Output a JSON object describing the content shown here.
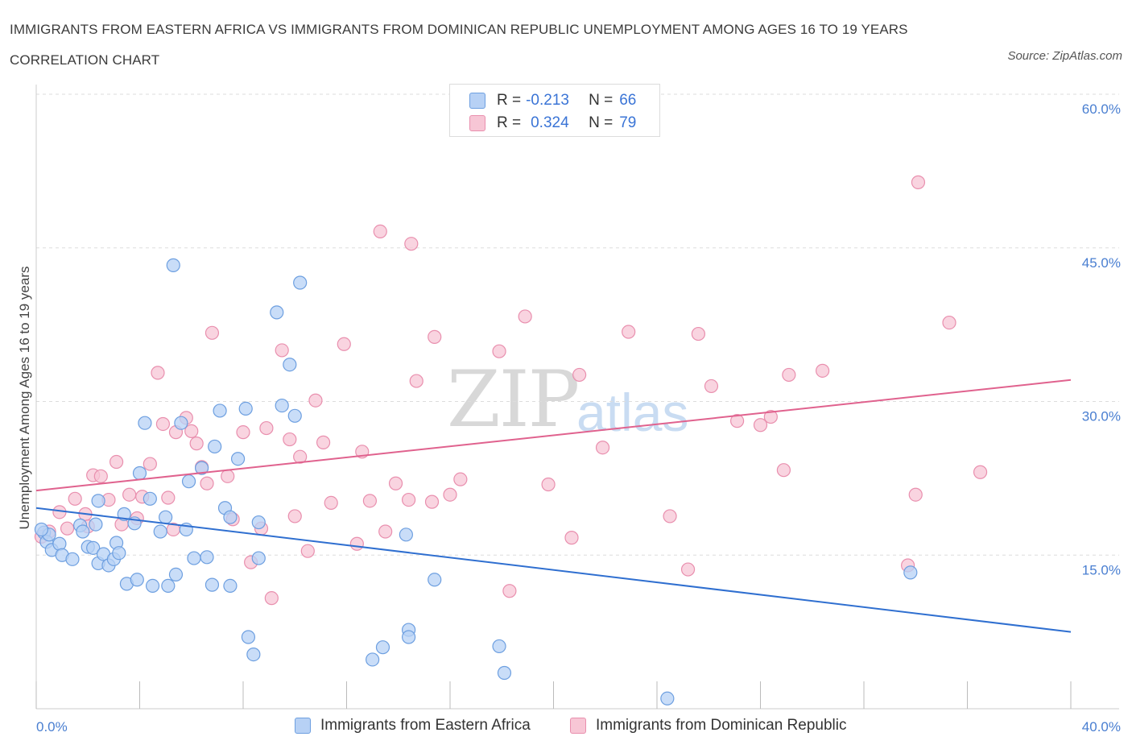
{
  "header": {
    "title": "IMMIGRANTS FROM EASTERN AFRICA VS IMMIGRANTS FROM DOMINICAN REPUBLIC UNEMPLOYMENT AMONG AGES 16 TO 19 YEARS CORRELATION CHART",
    "source": "Source: ZipAtlas.com"
  },
  "watermark": {
    "zip": "ZIP",
    "atlas": "atlas"
  },
  "legend": {
    "r_label": "R =",
    "n_label": "N =",
    "rows": [
      {
        "r": "-0.213",
        "n": "66"
      },
      {
        "r": "0.324",
        "n": "79"
      }
    ]
  },
  "colors": {
    "blue_fill": "#b7d1f5",
    "blue_stroke": "#6d9fe0",
    "blue_line": "#2f6fd0",
    "pink_fill": "#f7c6d5",
    "pink_stroke": "#e98fae",
    "pink_line": "#e0628e",
    "tick_text": "#4a7fd1",
    "grid": "#dddddd"
  },
  "chart_data": {
    "type": "scatter",
    "title": "IMMIGRANTS FROM EASTERN AFRICA VS IMMIGRANTS FROM DOMINICAN REPUBLIC UNEMPLOYMENT AMONG AGES 16 TO 19 YEARS CORRELATION CHART",
    "xlabel": "",
    "ylabel": "Unemployment Among Ages 16 to 19 years",
    "xlim": [
      0,
      40
    ],
    "ylim": [
      0,
      60
    ],
    "x_tick_labels": [
      "0.0%",
      "40.0%"
    ],
    "y_ticks": [
      15,
      30,
      45,
      60
    ],
    "y_tick_labels": [
      "15.0%",
      "30.0%",
      "45.0%",
      "60.0%"
    ],
    "grid": true,
    "legend_position": "top-center",
    "series": [
      {
        "name": "Immigrants from Eastern Africa",
        "color": "#6d9fe0",
        "trend": {
          "x": [
            0,
            40
          ],
          "y": [
            19.6,
            7.5
          ]
        },
        "points": [
          [
            0.3,
            17.2
          ],
          [
            0.4,
            16.3
          ],
          [
            0.5,
            17.0
          ],
          [
            0.6,
            15.5
          ],
          [
            0.9,
            16.1
          ],
          [
            1.0,
            15.0
          ],
          [
            1.4,
            14.6
          ],
          [
            1.7,
            17.9
          ],
          [
            1.8,
            17.3
          ],
          [
            2.0,
            15.8
          ],
          [
            2.2,
            15.7
          ],
          [
            2.3,
            18.0
          ],
          [
            2.4,
            20.3
          ],
          [
            2.4,
            14.2
          ],
          [
            2.6,
            15.1
          ],
          [
            2.8,
            14.0
          ],
          [
            3.0,
            14.6
          ],
          [
            3.1,
            16.2
          ],
          [
            3.2,
            15.2
          ],
          [
            3.4,
            19.0
          ],
          [
            3.5,
            12.2
          ],
          [
            3.8,
            18.1
          ],
          [
            3.9,
            12.6
          ],
          [
            4.0,
            23.0
          ],
          [
            4.2,
            27.9
          ],
          [
            4.5,
            12.0
          ],
          [
            4.4,
            20.5
          ],
          [
            4.8,
            17.3
          ],
          [
            5.0,
            18.7
          ],
          [
            5.1,
            12.0
          ],
          [
            5.3,
            43.3
          ],
          [
            5.4,
            13.1
          ],
          [
            5.6,
            27.9
          ],
          [
            5.8,
            17.5
          ],
          [
            5.9,
            22.2
          ],
          [
            6.1,
            14.7
          ],
          [
            6.4,
            23.5
          ],
          [
            6.6,
            14.8
          ],
          [
            6.8,
            12.1
          ],
          [
            6.9,
            25.6
          ],
          [
            7.1,
            29.1
          ],
          [
            7.3,
            19.6
          ],
          [
            7.5,
            12.0
          ],
          [
            7.5,
            18.7
          ],
          [
            7.8,
            24.4
          ],
          [
            8.1,
            29.3
          ],
          [
            8.2,
            7.0
          ],
          [
            8.4,
            5.3
          ],
          [
            8.6,
            18.2
          ],
          [
            8.6,
            14.7
          ],
          [
            9.3,
            38.7
          ],
          [
            9.5,
            29.6
          ],
          [
            9.8,
            33.6
          ],
          [
            10.0,
            28.6
          ],
          [
            10.2,
            41.6
          ],
          [
            13.0,
            4.8
          ],
          [
            13.4,
            6.0
          ],
          [
            14.3,
            17.0
          ],
          [
            14.4,
            7.7
          ],
          [
            14.4,
            7.0
          ],
          [
            15.4,
            12.6
          ],
          [
            17.9,
            6.1
          ],
          [
            18.1,
            3.5
          ],
          [
            24.4,
            1.0
          ],
          [
            33.8,
            13.3
          ],
          [
            0.2,
            17.5
          ]
        ]
      },
      {
        "name": "Immigrants from Dominican Republic",
        "color": "#e98fae",
        "trend": {
          "x": [
            0,
            40
          ],
          "y": [
            21.3,
            32.1
          ]
        },
        "points": [
          [
            0.2,
            16.8
          ],
          [
            0.5,
            17.3
          ],
          [
            0.9,
            19.2
          ],
          [
            1.2,
            17.6
          ],
          [
            1.5,
            20.5
          ],
          [
            1.9,
            19.0
          ],
          [
            2.0,
            17.8
          ],
          [
            2.2,
            22.8
          ],
          [
            2.5,
            22.7
          ],
          [
            2.8,
            20.4
          ],
          [
            3.1,
            24.1
          ],
          [
            3.3,
            18.0
          ],
          [
            3.6,
            20.9
          ],
          [
            3.9,
            18.6
          ],
          [
            4.1,
            20.7
          ],
          [
            4.4,
            23.9
          ],
          [
            4.7,
            32.8
          ],
          [
            4.9,
            27.8
          ],
          [
            5.1,
            20.6
          ],
          [
            5.3,
            17.5
          ],
          [
            5.4,
            27.0
          ],
          [
            5.8,
            28.4
          ],
          [
            6.0,
            27.1
          ],
          [
            6.2,
            25.9
          ],
          [
            6.4,
            23.6
          ],
          [
            6.6,
            22.0
          ],
          [
            6.8,
            36.7
          ],
          [
            7.4,
            22.7
          ],
          [
            7.6,
            18.5
          ],
          [
            8.0,
            27.0
          ],
          [
            8.3,
            14.3
          ],
          [
            8.7,
            17.6
          ],
          [
            8.9,
            27.4
          ],
          [
            9.1,
            10.8
          ],
          [
            9.5,
            35.0
          ],
          [
            9.8,
            26.3
          ],
          [
            10.0,
            18.8
          ],
          [
            10.2,
            24.6
          ],
          [
            10.5,
            15.4
          ],
          [
            10.8,
            30.1
          ],
          [
            11.1,
            26.0
          ],
          [
            11.4,
            20.1
          ],
          [
            11.9,
            35.6
          ],
          [
            12.4,
            16.1
          ],
          [
            12.6,
            25.1
          ],
          [
            12.9,
            20.3
          ],
          [
            13.3,
            46.6
          ],
          [
            13.5,
            17.3
          ],
          [
            13.9,
            22.0
          ],
          [
            14.4,
            20.4
          ],
          [
            14.5,
            45.4
          ],
          [
            14.7,
            32.0
          ],
          [
            15.3,
            20.2
          ],
          [
            15.4,
            36.3
          ],
          [
            16.0,
            20.9
          ],
          [
            16.4,
            22.4
          ],
          [
            17.9,
            34.9
          ],
          [
            18.3,
            11.5
          ],
          [
            18.9,
            38.3
          ],
          [
            19.8,
            21.9
          ],
          [
            20.7,
            16.7
          ],
          [
            21.0,
            32.6
          ],
          [
            21.9,
            25.5
          ],
          [
            22.9,
            36.8
          ],
          [
            24.5,
            18.8
          ],
          [
            25.2,
            13.6
          ],
          [
            25.6,
            36.6
          ],
          [
            26.1,
            31.5
          ],
          [
            27.1,
            28.1
          ],
          [
            28.0,
            27.7
          ],
          [
            28.4,
            28.5
          ],
          [
            28.9,
            23.3
          ],
          [
            29.1,
            32.6
          ],
          [
            30.4,
            33.0
          ],
          [
            33.7,
            14.0
          ],
          [
            34.0,
            20.9
          ],
          [
            34.1,
            51.4
          ],
          [
            35.3,
            37.7
          ],
          [
            36.5,
            23.1
          ]
        ]
      }
    ]
  }
}
